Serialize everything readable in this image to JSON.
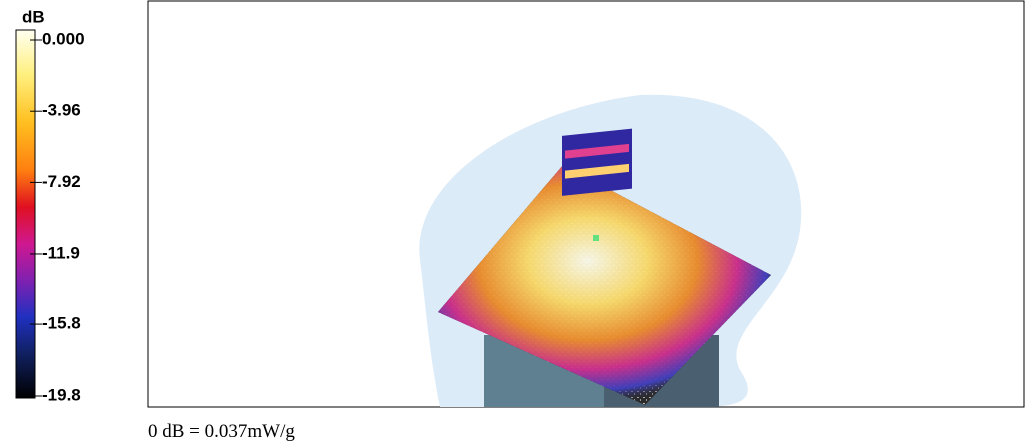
{
  "colorbar": {
    "unit": "dB",
    "ticks": [
      {
        "value": 0,
        "label": "0.000"
      },
      -3.96,
      -7.92,
      -11.9,
      -15.8,
      -19.8
    ]
  },
  "footer": "0 dB = 0.037mW/g"
}
